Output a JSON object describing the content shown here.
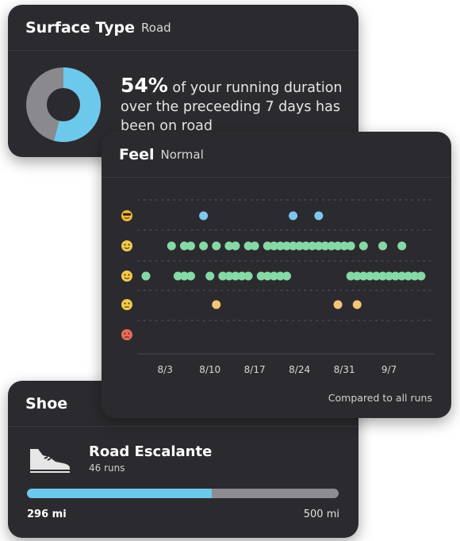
{
  "surface": {
    "title": "Surface Type",
    "value": "Road",
    "percent": "54%",
    "fraction": 0.54,
    "text": "of your running duration over the preceeding 7 days has been on road",
    "colors": {
      "road": "#6cc9ec",
      "other": "#8a8a8e"
    }
  },
  "feel": {
    "title": "Feel",
    "value": "Normal",
    "footnote": "Compared to all runs",
    "icons": [
      "sunglasses-face-icon",
      "smiling-face-icon",
      "slightly-smiling-face-icon",
      "neutral-face-icon",
      "tired-face-icon"
    ]
  },
  "chart_data": {
    "type": "scatter",
    "x_ticks": [
      "8/3",
      "8/10",
      "8/17",
      "8/24",
      "8/31",
      "9/7"
    ],
    "xlim": [
      "7/31",
      "9/13"
    ],
    "rows": [
      {
        "name": "sunglasses",
        "color": "#7cc8ee",
        "dates": [
          "8/9",
          "8/23",
          "8/27"
        ]
      },
      {
        "name": "smiling",
        "color": "#86d9a6",
        "dates": [
          "8/4",
          "8/6",
          "8/7",
          "8/9",
          "8/11",
          "8/13",
          "8/14",
          "8/16",
          "8/17",
          "8/19",
          "8/20",
          "8/21",
          "8/22",
          "8/23",
          "8/24",
          "8/25",
          "8/26",
          "8/27",
          "8/28",
          "8/29",
          "8/30",
          "8/31",
          "9/1",
          "9/3",
          "9/6",
          "9/9"
        ]
      },
      {
        "name": "slightly-smiling",
        "color": "#86d9a6",
        "dates": [
          "7/31",
          "8/5",
          "8/6",
          "8/7",
          "8/10",
          "8/12",
          "8/13",
          "8/14",
          "8/15",
          "8/16",
          "8/18",
          "8/19",
          "8/20",
          "8/21",
          "8/22",
          "9/1",
          "9/2",
          "9/3",
          "9/4",
          "9/5",
          "9/6",
          "9/7",
          "9/8",
          "9/9",
          "9/10",
          "9/11",
          "9/12"
        ]
      },
      {
        "name": "neutral",
        "color": "#f5c57a",
        "dates": [
          "8/11",
          "8/30",
          "9/2"
        ]
      },
      {
        "name": "tired",
        "color": "#f5c57a",
        "dates": []
      }
    ]
  },
  "shoe": {
    "title": "Shoe",
    "name": "Road Escalante",
    "runs": "46 runs",
    "distance": "296 mi",
    "limit": "500 mi",
    "progress": 0.592,
    "colors": {
      "fill": "#6cc9ec",
      "track": "#8d8d91"
    }
  }
}
